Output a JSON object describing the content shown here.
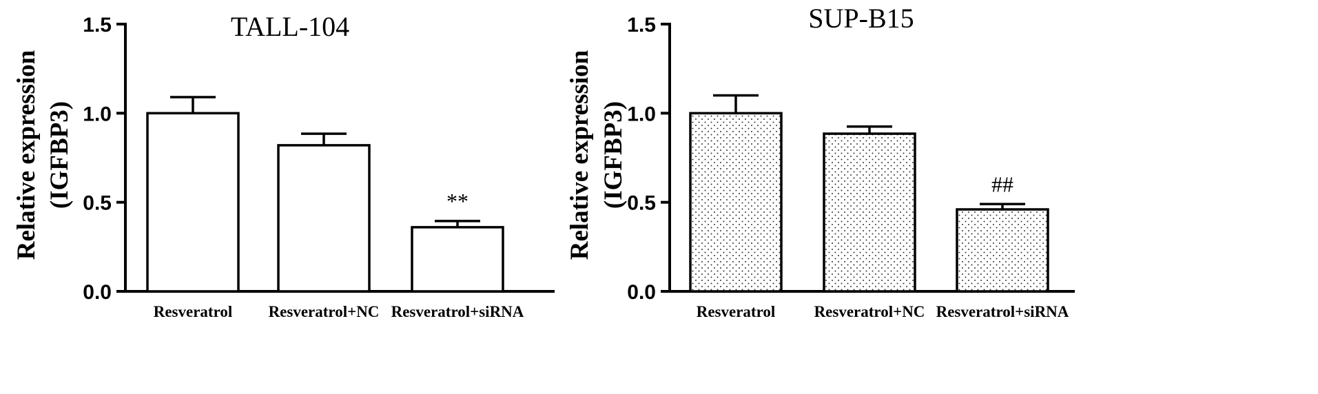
{
  "chart_data": [
    {
      "type": "bar",
      "title": "TALL-104",
      "ylabel_line1": "Relative expression",
      "ylabel_line2": "(IGFBP3)",
      "ylim": [
        0,
        1.5
      ],
      "yticks": [
        "0.0",
        "0.5",
        "1.0",
        "1.5"
      ],
      "ytick_values": [
        0,
        0.5,
        1.0,
        1.5
      ],
      "categories": [
        "Resveratrol",
        "Resveratrol+NC",
        "Resveratrol+siRNA"
      ],
      "values": [
        1.0,
        0.82,
        0.36
      ],
      "errors": [
        0.09,
        0.065,
        0.035
      ],
      "annotations": [
        "",
        "",
        "**"
      ],
      "fill": "white",
      "grid": false
    },
    {
      "type": "bar",
      "title": "SUP-B15",
      "ylabel_line1": "Relative expression",
      "ylabel_line2": "(IGFBP3)",
      "ylim": [
        0,
        1.5
      ],
      "yticks": [
        "0.0",
        "0.5",
        "1.0",
        "1.5"
      ],
      "ytick_values": [
        0,
        0.5,
        1.0,
        1.5
      ],
      "categories": [
        "Resveratrol",
        "Resveratrol+NC",
        "Resveratrol+siRNA"
      ],
      "values": [
        1.0,
        0.885,
        0.46
      ],
      "errors": [
        0.1,
        0.04,
        0.03
      ],
      "annotations": [
        "",
        "",
        "##"
      ],
      "fill": "dotted",
      "grid": false
    }
  ],
  "colors": {
    "stroke": "#000000",
    "background": "#ffffff"
  }
}
